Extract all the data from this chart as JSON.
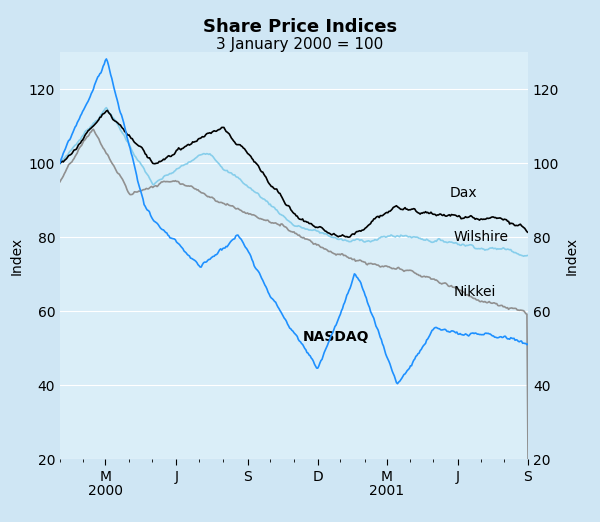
{
  "title": "Share Price Indices",
  "subtitle": "3 January 2000 = 100",
  "ylabel_left": "Index",
  "ylabel_right": "Index",
  "ylim": [
    20,
    130
  ],
  "yticks": [
    20,
    40,
    60,
    80,
    100,
    120
  ],
  "background_color": "#cfe6f4",
  "plot_background": "#daeef8",
  "grid_color": "#ffffff",
  "title_fontsize": 13,
  "subtitle_fontsize": 11,
  "label_fontsize": 10,
  "tick_fontsize": 10,
  "colors": {
    "Dax": "#000000",
    "Wilshire": "#87ceeb",
    "Nikkei": "#909090",
    "NASDAQ": "#1e90ff"
  },
  "line_widths": {
    "Dax": 1.2,
    "Wilshire": 1.2,
    "Nikkei": 1.2,
    "NASDAQ": 1.2
  }
}
